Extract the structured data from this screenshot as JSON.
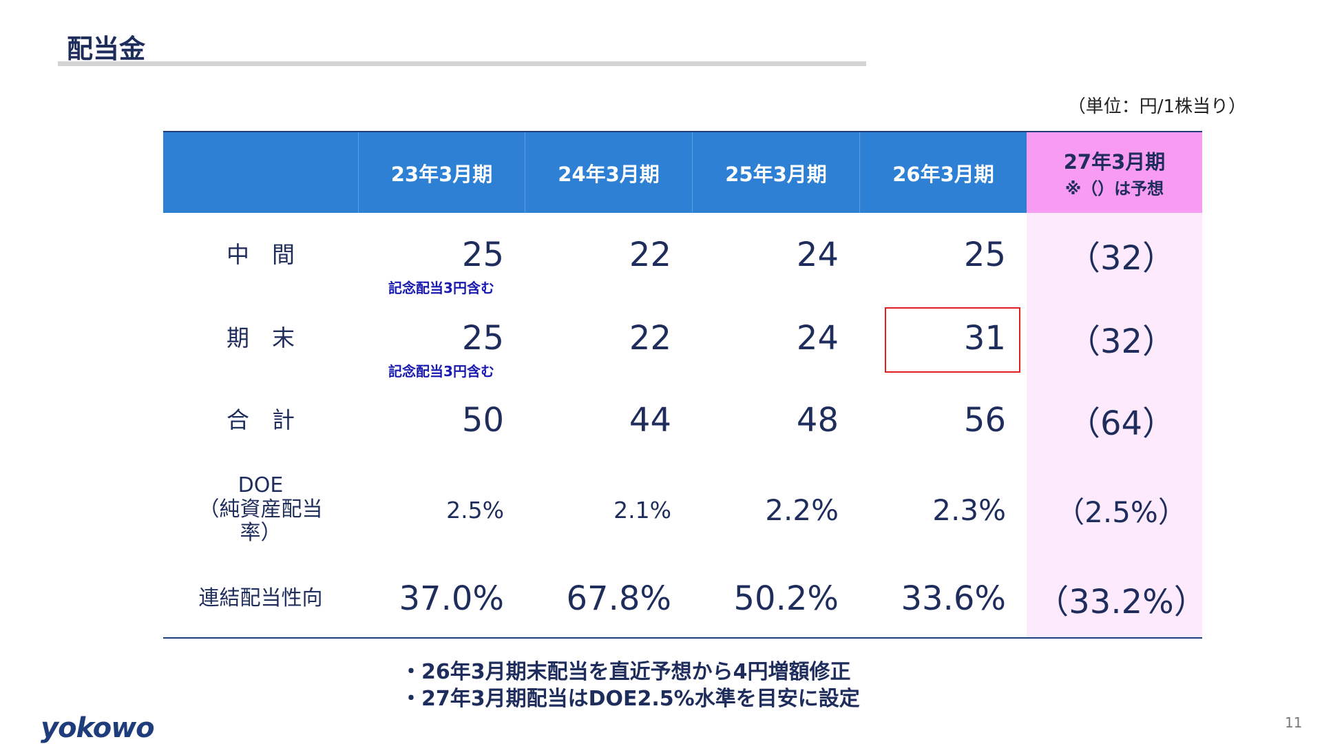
{
  "header": {
    "title": "配当金",
    "unit": "（単位：円/1株当り）"
  },
  "table": {
    "columns": [
      "23年3月期",
      "24年3月期",
      "25年3月期",
      "26年3月期",
      "27年3月期"
    ],
    "forecast_note": "※（）は予想",
    "rows": [
      {
        "label": [
          "中　間"
        ],
        "cells": [
          "25",
          "22",
          "24",
          "25",
          "（32）"
        ],
        "note": "記念配当3円含む"
      },
      {
        "label": [
          "期　末"
        ],
        "cells": [
          "25",
          "22",
          "24",
          "31",
          "（32）"
        ],
        "note": "記念配当3円含む"
      },
      {
        "label": [
          "合　計"
        ],
        "cells": [
          "50",
          "44",
          "48",
          "56",
          "（64）"
        ]
      },
      {
        "label": [
          "DOE",
          "（純資産配当率）"
        ],
        "cells": [
          "2.5%",
          "2.1%",
          "2.2%",
          "2.3%",
          "（2.5%）"
        ]
      },
      {
        "label": [
          "連結配当性向"
        ],
        "cells": [
          "37.0%",
          "67.8%",
          "50.2%",
          "33.6%",
          "（33.2%）"
        ]
      }
    ]
  },
  "footnotes": [
    "・26年3月期末配当を直近予想から4円増額修正",
    "・27年3月期配当はDOE2.5%水準を目安に設定"
  ],
  "footer": {
    "logo": "yokowo",
    "page": "11"
  }
}
